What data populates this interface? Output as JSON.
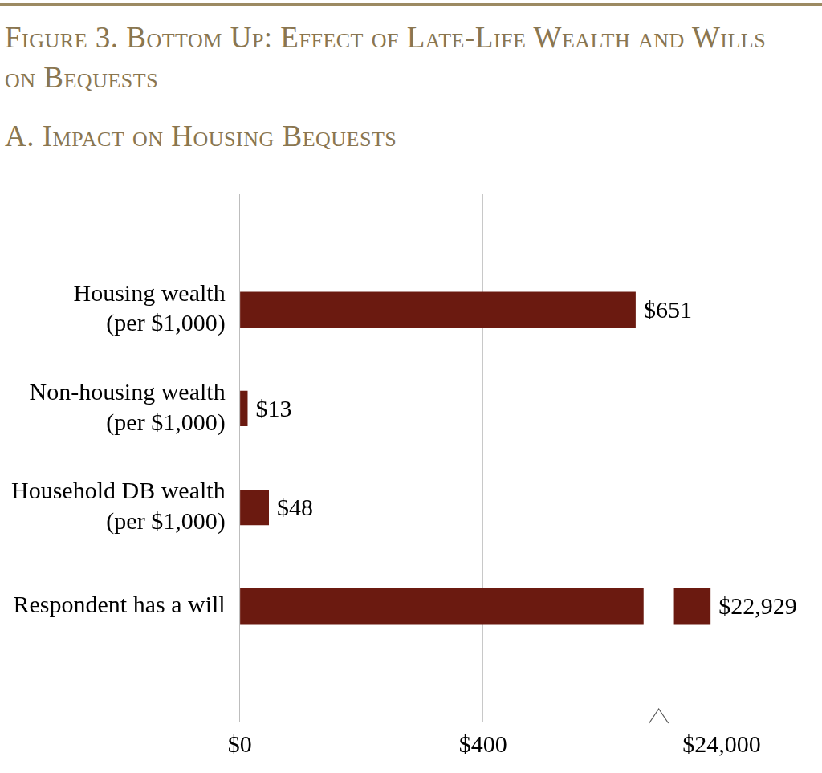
{
  "chart_data": {
    "type": "bar",
    "orientation": "horizontal",
    "title": "Figure 3. Bottom Up: Effect of Late-Life Wealth and Wills on Bequests",
    "subtitle": "A. Impact on Housing Bequests",
    "categories": [
      [
        "Housing wealth",
        "(per $1,000)"
      ],
      [
        "Non-housing wealth",
        "(per $1,000)"
      ],
      [
        "Household DB wealth",
        "(per $1,000)"
      ],
      "Respondent has a will"
    ],
    "values": [
      651,
      13,
      48,
      22929
    ],
    "value_labels": [
      "$651",
      "$13",
      "$48",
      "$22,929"
    ],
    "data_labels": true,
    "color": "#6b1a10",
    "xlim": [
      0,
      24000
    ],
    "x_break": [
      664,
      19400
    ],
    "xticks": [
      {
        "value": 0,
        "label": "$0"
      },
      {
        "value": 400,
        "label": "$400"
      },
      {
        "value": 24000,
        "label": "$24,000"
      }
    ],
    "grid": true
  }
}
